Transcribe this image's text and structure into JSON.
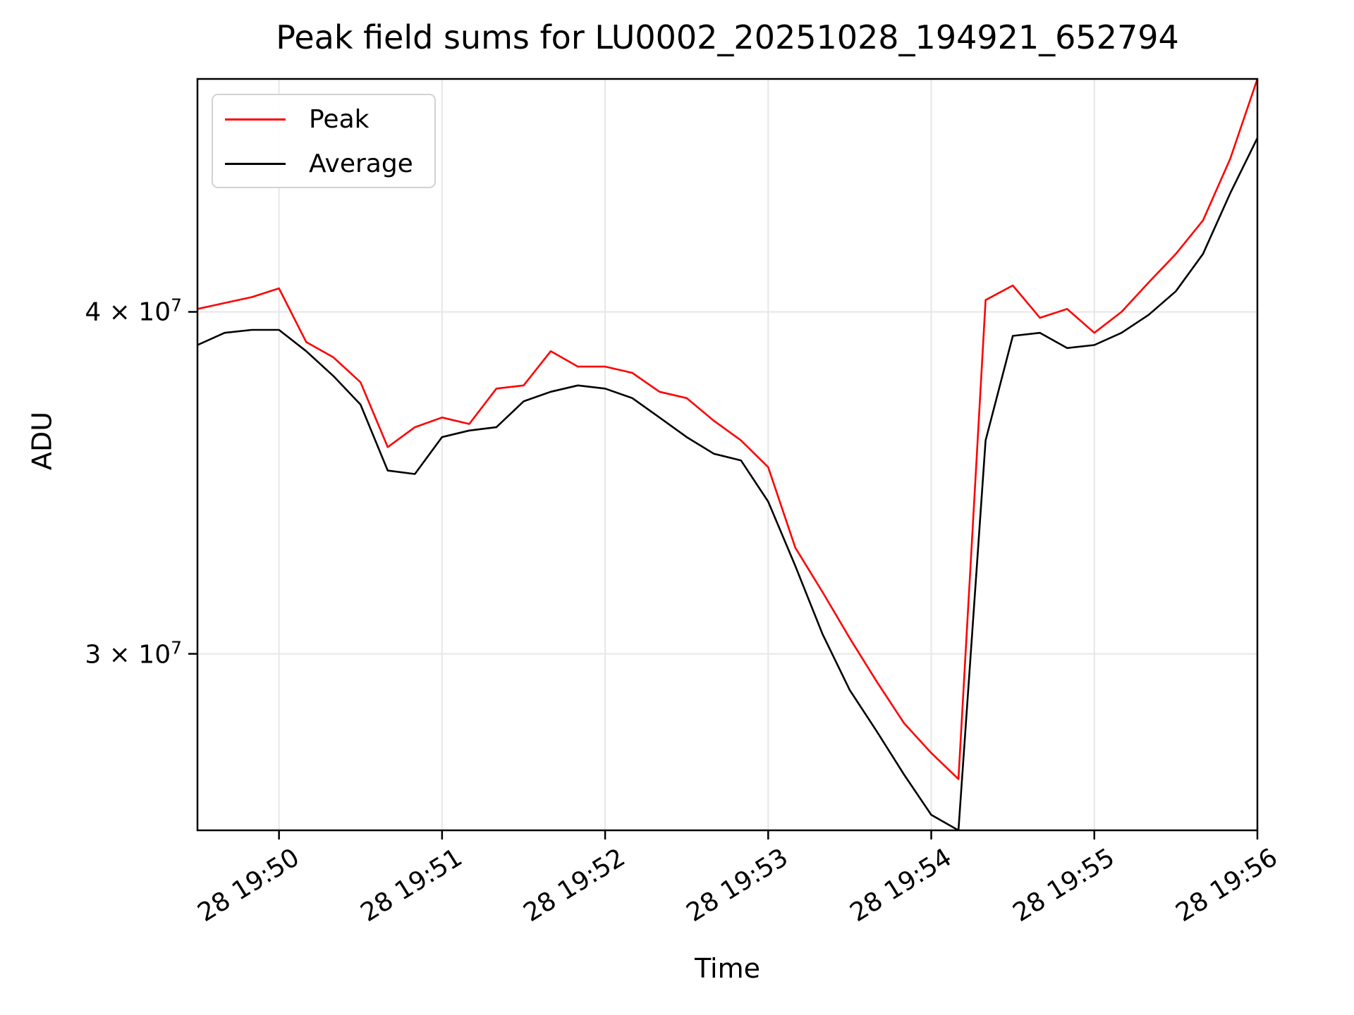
{
  "title": "Peak field sums for LU0002_20251028_194921_652794",
  "legend": {
    "items": [
      {
        "label": "Peak",
        "color": "#ff0000"
      },
      {
        "label": "Average",
        "color": "#000000"
      }
    ]
  },
  "axes": {
    "xlabel": "Time",
    "ylabel": "ADU",
    "yticks": [
      {
        "mantissa": "4 × 10",
        "exp": "7",
        "value": 40000000
      },
      {
        "mantissa": "3 × 10",
        "exp": "7",
        "value": 30000000
      }
    ],
    "xticks": [
      {
        "label": "28 19:50",
        "s": 30
      },
      {
        "label": "28 19:51",
        "s": 90
      },
      {
        "label": "28 19:52",
        "s": 150
      },
      {
        "label": "28 19:53",
        "s": 210
      },
      {
        "label": "28 19:54",
        "s": 270
      },
      {
        "label": "28 19:55",
        "s": 330
      },
      {
        "label": "28 19:56",
        "s": 390
      }
    ]
  },
  "chart_data": {
    "type": "line",
    "title": "Peak field sums for LU0002_20251028_194921_652794",
    "xlabel": "Time",
    "ylabel": "ADU",
    "yscale": "log",
    "ylim": [
      25860000,
      48660000
    ],
    "grid": true,
    "legend_position": "upper left",
    "x_range_s": [
      0,
      390
    ],
    "x_offsets_s": [
      0,
      10,
      20,
      30,
      40,
      50,
      60,
      70,
      80,
      90,
      100,
      110,
      120,
      130,
      140,
      150,
      160,
      170,
      180,
      190,
      200,
      210,
      220,
      230,
      240,
      250,
      260,
      270,
      280,
      290,
      300,
      310,
      320,
      330,
      340,
      350,
      360,
      370,
      380,
      390
    ],
    "x_times": [
      "28 19:49:30",
      "28 19:49:40",
      "28 19:49:50",
      "28 19:50:00",
      "28 19:50:10",
      "28 19:50:20",
      "28 19:50:30",
      "28 19:50:40",
      "28 19:50:50",
      "28 19:51:00",
      "28 19:51:10",
      "28 19:51:20",
      "28 19:51:30",
      "28 19:51:40",
      "28 19:51:50",
      "28 19:52:00",
      "28 19:52:10",
      "28 19:52:20",
      "28 19:52:30",
      "28 19:52:40",
      "28 19:52:50",
      "28 19:53:00",
      "28 19:53:10",
      "28 19:53:20",
      "28 19:53:30",
      "28 19:53:40",
      "28 19:53:50",
      "28 19:54:00",
      "28 19:54:10",
      "28 19:54:20",
      "28 19:54:30",
      "28 19:54:40",
      "28 19:54:50",
      "28 19:55:00",
      "28 19:55:10",
      "28 19:55:20",
      "28 19:55:30",
      "28 19:55:40",
      "28 19:55:50",
      "28 19:56:00"
    ],
    "series": [
      {
        "name": "Peak",
        "color": "#ff0000",
        "values": [
          40100000,
          40300000,
          40500000,
          40800000,
          39000000,
          38500000,
          37700000,
          35700000,
          36300000,
          36600000,
          36400000,
          37500000,
          37600000,
          38700000,
          38200000,
          38200000,
          38000000,
          37400000,
          37200000,
          36500000,
          35900000,
          35100000,
          32800000,
          31600000,
          30400000,
          29300000,
          28300000,
          27600000,
          27000000,
          40400000,
          40900000,
          39800000,
          40100000,
          39300000,
          40000000,
          41000000,
          42000000,
          43200000,
          45500000,
          48660000
        ]
      },
      {
        "name": "Average",
        "color": "#000000",
        "values": [
          38900000,
          39300000,
          39400000,
          39400000,
          38700000,
          37900000,
          37000000,
          35000000,
          34900000,
          36000000,
          36200000,
          36300000,
          37100000,
          37400000,
          37600000,
          37500000,
          37200000,
          36600000,
          36000000,
          35500000,
          35300000,
          34100000,
          32300000,
          30500000,
          29100000,
          28100000,
          27100000,
          26200000,
          25860000,
          35900000,
          39200000,
          39300000,
          38800000,
          38900000,
          39300000,
          39900000,
          40700000,
          42000000,
          44200000,
          46300000
        ]
      }
    ],
    "colors": {
      "grid": "#e6e6e6",
      "spine": "#000000",
      "background": "#ffffff"
    }
  }
}
